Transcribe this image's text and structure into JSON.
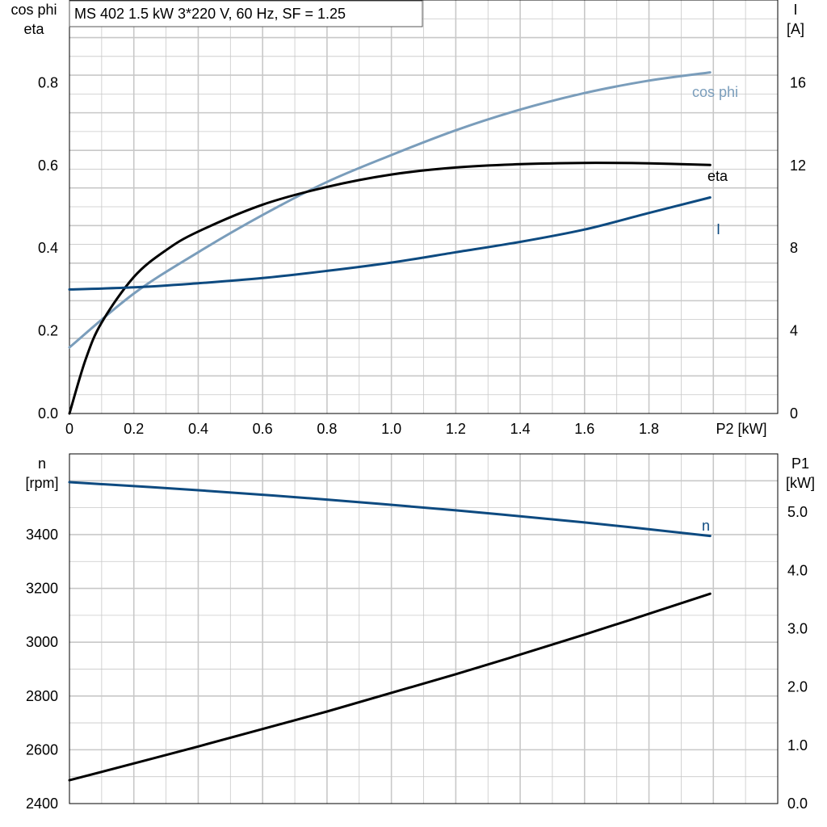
{
  "title": "MS 402   1.5 kW   3*220 V, 60 Hz, SF = 1.25",
  "colors": {
    "grid": "#c8c8c8",
    "cos_phi": "#7a9dbb",
    "eta": "#000000",
    "current": "#0d4a80",
    "speed": "#0d4a80",
    "p1": "#000000"
  },
  "chart_data": [
    {
      "type": "line",
      "xlabel": "P2 [kW]",
      "ylabel_left": [
        "cos phi",
        "eta"
      ],
      "ylabel_right": [
        "I",
        "[A]"
      ],
      "xlim": [
        0,
        2.2
      ],
      "ylim_left": [
        0,
        1.0
      ],
      "ylim_right": [
        0,
        20
      ],
      "xticks": [
        "0",
        "0.2",
        "0.4",
        "0.6",
        "0.8",
        "1.0",
        "1.2",
        "1.4",
        "1.6",
        "1.8"
      ],
      "yticks_left": [
        "0.0",
        "0.2",
        "0.4",
        "0.6",
        "0.8"
      ],
      "yticks_right": [
        "0",
        "4",
        "8",
        "12",
        "16"
      ],
      "grid": true,
      "series": [
        {
          "name": "cos phi",
          "axis": "left",
          "x": [
            0,
            0.2,
            0.4,
            0.6,
            0.8,
            1.0,
            1.2,
            1.4,
            1.6,
            1.8,
            1.99
          ],
          "y": [
            0.16,
            0.29,
            0.39,
            0.48,
            0.56,
            0.625,
            0.685,
            0.735,
            0.775,
            0.805,
            0.825
          ]
        },
        {
          "name": "eta",
          "axis": "left",
          "x": [
            0,
            0.05,
            0.1,
            0.2,
            0.3,
            0.4,
            0.6,
            0.8,
            1.0,
            1.2,
            1.4,
            1.6,
            1.8,
            1.99
          ],
          "y": [
            0,
            0.13,
            0.22,
            0.33,
            0.395,
            0.44,
            0.505,
            0.548,
            0.578,
            0.595,
            0.603,
            0.606,
            0.605,
            0.601
          ]
        },
        {
          "name": "I",
          "axis": "right",
          "x": [
            0,
            0.2,
            0.4,
            0.6,
            0.8,
            1.0,
            1.2,
            1.4,
            1.6,
            1.8,
            1.99
          ],
          "y": [
            6.0,
            6.1,
            6.3,
            6.55,
            6.9,
            7.3,
            7.8,
            8.3,
            8.9,
            9.7,
            10.45
          ]
        }
      ]
    },
    {
      "type": "line",
      "ylabel_left": [
        "n",
        "[rpm]"
      ],
      "ylabel_right": [
        "P1",
        "[kW]"
      ],
      "xlim": [
        0,
        2.2
      ],
      "ylim_left": [
        2400,
        3700
      ],
      "ylim_right": [
        0,
        6.0
      ],
      "yticks_left": [
        "2400",
        "2600",
        "2800",
        "3000",
        "3200",
        "3400"
      ],
      "yticks_right": [
        "0.0",
        "1.0",
        "2.0",
        "3.0",
        "4.0",
        "5.0"
      ],
      "grid": true,
      "series": [
        {
          "name": "n",
          "axis": "left",
          "x": [
            0,
            0.4,
            0.8,
            1.2,
            1.6,
            1.99
          ],
          "y": [
            3595,
            3565,
            3530,
            3490,
            3445,
            3395
          ]
        },
        {
          "name": "",
          "axis": "right",
          "x": [
            0,
            0.4,
            0.8,
            1.2,
            1.6,
            1.99
          ],
          "y": [
            0.4,
            0.98,
            1.58,
            2.22,
            2.9,
            3.6
          ]
        }
      ]
    }
  ]
}
